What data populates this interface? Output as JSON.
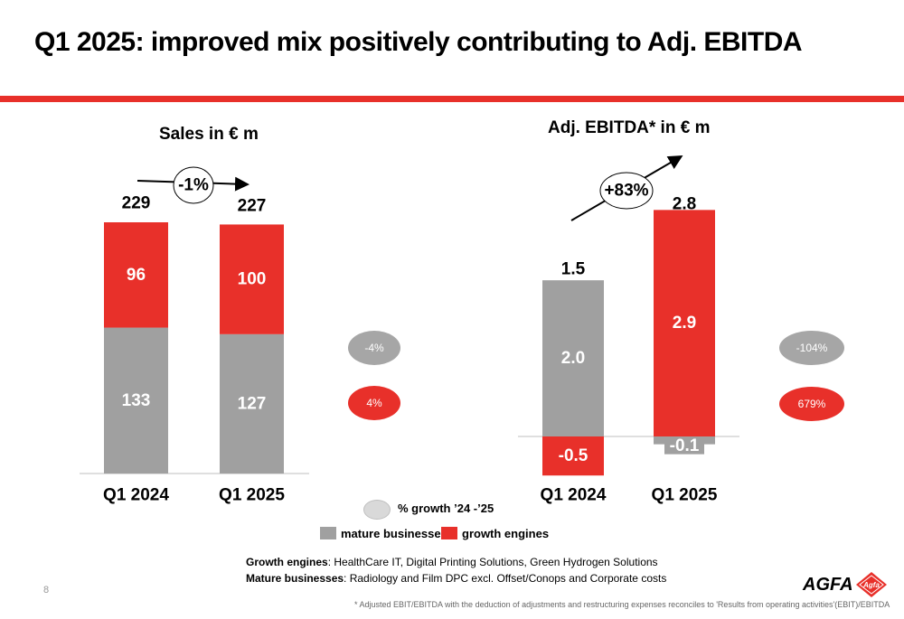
{
  "title": "Q1 2025: improved mix positively contributing to Adj. EBITDA",
  "colors": {
    "accent": "#e8302a",
    "mature": "#a0a0a0",
    "growth": "#e8302a",
    "pill_gray": "#a6a6a6"
  },
  "chart_data": [
    {
      "type": "bar",
      "stacked": true,
      "title": "Sales in € m",
      "categories": [
        "Q1 2024",
        "Q1 2025"
      ],
      "series": [
        {
          "name": "mature businesses",
          "values": [
            133,
            127
          ],
          "labels": [
            "133",
            "127"
          ]
        },
        {
          "name": "growth engines",
          "values": [
            96,
            100
          ],
          "labels": [
            "96",
            "100"
          ]
        }
      ],
      "totals": [
        229,
        227
      ],
      "total_labels": [
        "229",
        "227"
      ],
      "change": "-1%",
      "series_growth": [
        "-4%",
        "4%"
      ],
      "ylim": [
        0,
        229
      ]
    },
    {
      "type": "bar",
      "stacked": true,
      "title": "Adj. EBITDA* in € m",
      "categories": [
        "Q1 2024",
        "Q1 2025"
      ],
      "series": [
        {
          "name": "mature businesses",
          "values": [
            2.0,
            -0.1
          ],
          "labels": [
            "2.0",
            "-0.1"
          ]
        },
        {
          "name": "growth engines",
          "values": [
            -0.5,
            2.9
          ],
          "labels": [
            "-0.5",
            "2.9"
          ]
        }
      ],
      "totals": [
        1.5,
        2.8
      ],
      "total_labels": [
        "1.5",
        "2.8"
      ],
      "change": "+83%",
      "series_growth": [
        "-104%",
        "679%"
      ],
      "ylim": [
        -0.5,
        2.9
      ]
    }
  ],
  "legend": {
    "growth_label": "% growth ’24 -’25",
    "mature_label": "mature businesses",
    "growth_engines_label": "growth engines"
  },
  "notes": {
    "growth_engines_key": "Growth engines",
    "growth_engines_text": ": HealthCare IT, Digital Printing Solutions, Green Hydrogen Solutions",
    "mature_key": "Mature businesses",
    "mature_text": ": Radiology and Film DPC excl. Offset/Conops and Corporate costs"
  },
  "footnote": "* Adjusted EBIT/EBITDA with the deduction of adjustments and restructuring expenses reconciles to 'Results from operating activities'(EBIT)/EBITDA",
  "page_number": "8",
  "logo": {
    "word": "AGFA",
    "mark": "Agfa",
    "icon": "agfa-rhombus-logo"
  }
}
